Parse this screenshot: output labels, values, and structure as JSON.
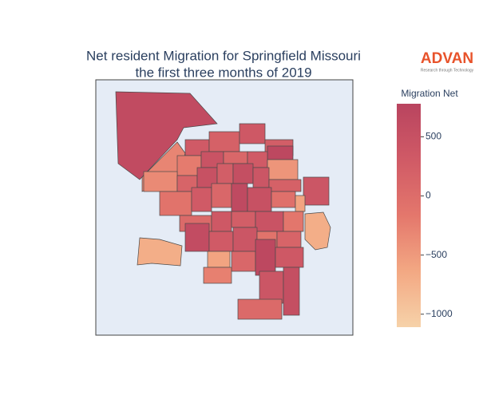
{
  "chart_data": {
    "type": "choropleth",
    "title": [
      "Net resident Migration for Springfield Missouri",
      "the first three months of 2019"
    ],
    "logo": {
      "name": "ADVAN",
      "tagline": "Research through Technology"
    },
    "colorbar_title": "Migration Net",
    "clim": [
      -1110,
      780
    ],
    "cticks": [
      {
        "value": 500,
        "label": "500"
      },
      {
        "value": 0,
        "label": "0"
      },
      {
        "value": -500,
        "label": "−500"
      },
      {
        "value": -1000,
        "label": "−1000"
      }
    ],
    "colorscale": [
      "#f6d2a9",
      "#f3a883",
      "#e4776c",
      "#d05a66",
      "#b9445f"
    ],
    "regions": [
      620,
      -300,
      300,
      200,
      350,
      250,
      700,
      -200,
      450,
      100,
      300,
      -450,
      -350,
      150,
      500,
      250,
      550,
      400,
      200,
      400,
      -100,
      300,
      100,
      650,
      500,
      -50,
      -600,
      50,
      350,
      250,
      450,
      -150,
      -700,
      600,
      300,
      400,
      -100,
      150,
      -600,
      100,
      700,
      350,
      -250,
      400,
      550,
      50,
      -700
    ]
  }
}
